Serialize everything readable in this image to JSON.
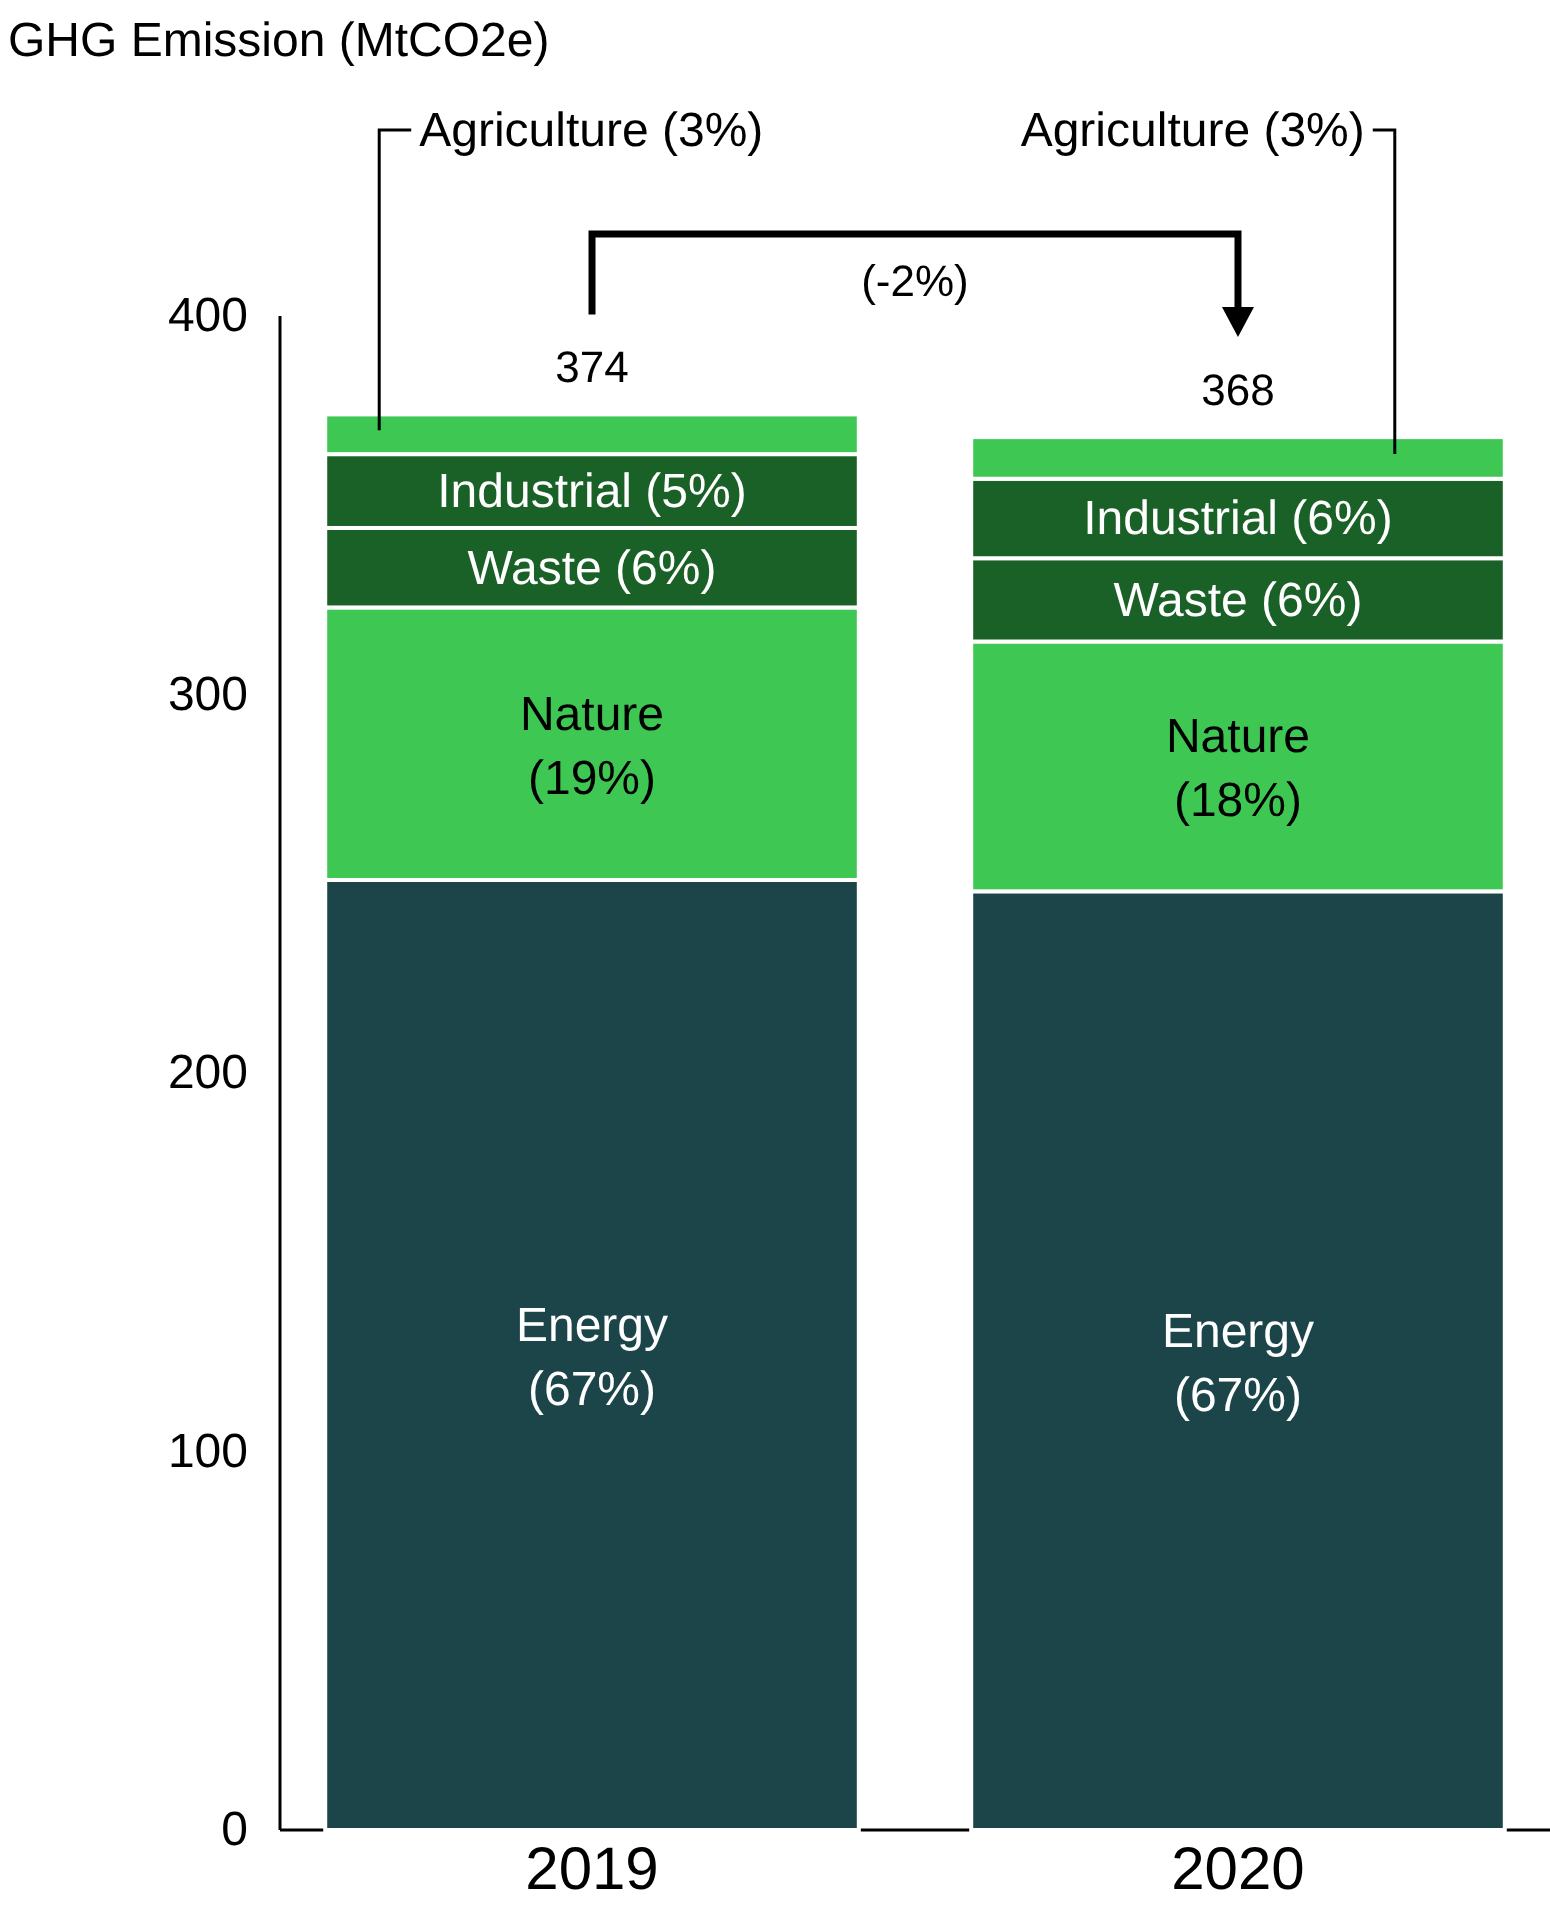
{
  "chart_data": {
    "type": "bar",
    "stacked": true,
    "ylabel": "GHG Emission (MtCO2e)",
    "categories": [
      "2019",
      "2020"
    ],
    "ylim": [
      0,
      400
    ],
    "yticks": [
      0,
      100,
      200,
      300,
      400
    ],
    "grid": false,
    "series": [
      {
        "color": "#1c454a",
        "values": [
          251,
          248
        ]
      },
      {
        "color": "#3ec853",
        "values": [
          72,
          66
        ]
      },
      {
        "color": "#1a6127",
        "values": [
          21,
          22
        ]
      },
      {
        "color": "#1a6127",
        "values": [
          19.5,
          21
        ]
      },
      {
        "color": "#3ec853",
        "values": [
          10.5,
          11
        ]
      }
    ],
    "totals": [
      "374",
      "368"
    ],
    "annotations": [
      "(-2%)",
      "Energy (67%)",
      "Energy (67%)",
      "Nature (19%)",
      "Nature (18%)",
      "Waste (6%)",
      "Waste (6%)",
      "Industrial (5%)",
      "Industrial (6%)",
      "Agriculture  (3%)",
      "Agriculture  (3%)"
    ]
  }
}
